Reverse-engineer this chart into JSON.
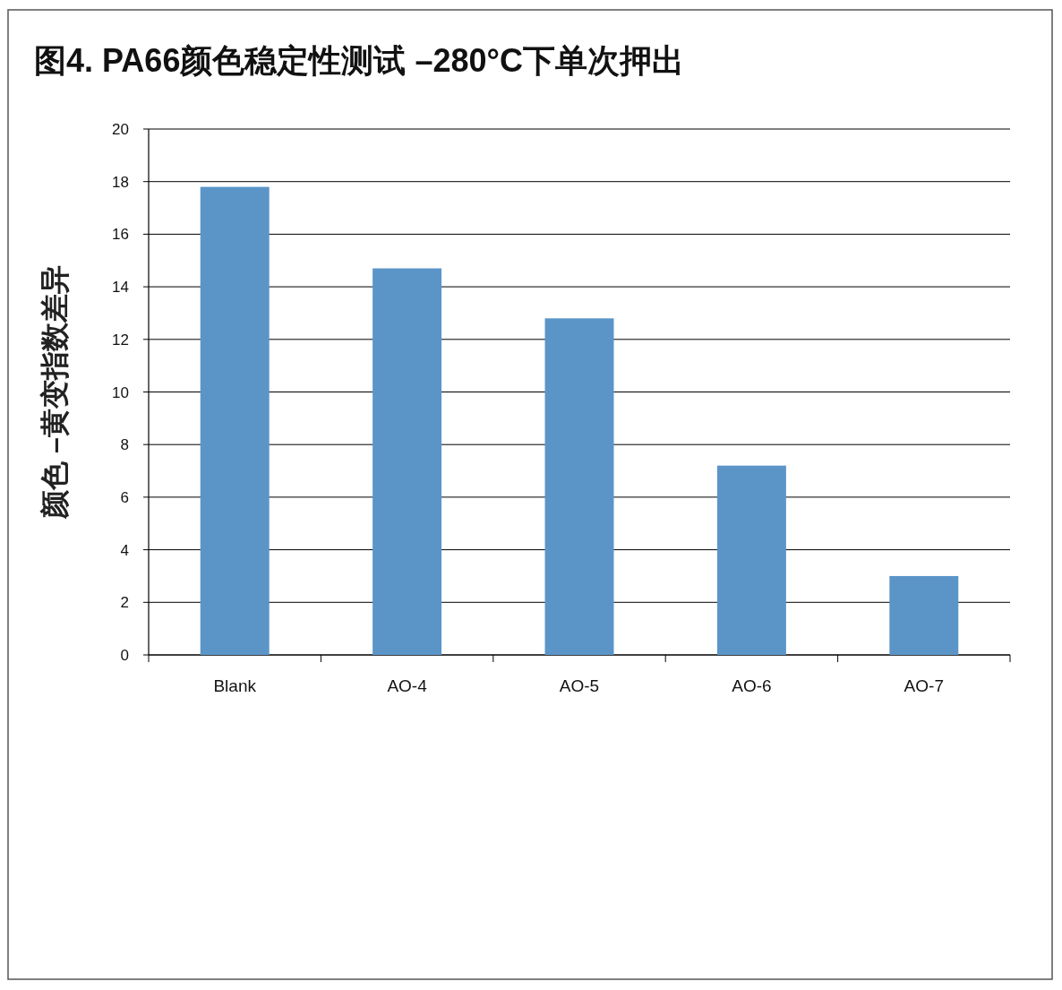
{
  "chart_data": {
    "type": "bar",
    "title": "图4. PA66颜色稳定性测试 –280°C下单次押出",
    "ylabel": "颜色 –黄变指数差异",
    "categories": [
      "Blank",
      "AO-4",
      "AO-5",
      "AO-6",
      "AO-7"
    ],
    "values": [
      17.8,
      14.7,
      12.8,
      7.2,
      3.0
    ],
    "color": "#5b95c8",
    "ylim": [
      0,
      20
    ],
    "yticks": [
      0,
      2,
      4,
      6,
      8,
      10,
      12,
      14,
      16,
      18,
      20
    ],
    "grid": "y"
  }
}
